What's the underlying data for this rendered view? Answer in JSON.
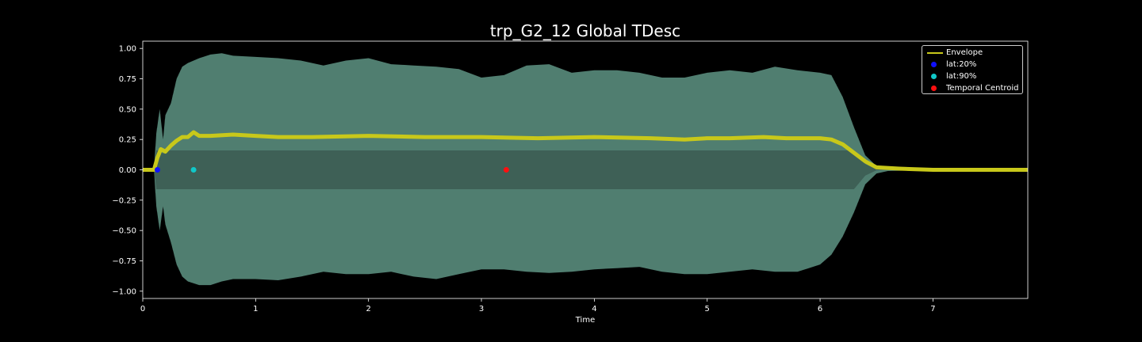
{
  "chart_data": {
    "type": "line",
    "title": "trp_G2_12 Global TDesc",
    "xlabel": "Time",
    "ylabel": "",
    "xlim": [
      0,
      7.84
    ],
    "ylim": [
      -1.06,
      1.06
    ],
    "xticks": [
      0,
      1,
      2,
      3,
      4,
      5,
      6,
      7
    ],
    "yticks": [
      -1.0,
      -0.75,
      -0.5,
      -0.25,
      0.0,
      0.25,
      0.5,
      0.75,
      1.0
    ],
    "ytick_labels": [
      "−1.00",
      "−0.75",
      "−0.50",
      "−0.25",
      "0.00",
      "0.25",
      "0.50",
      "0.75",
      "1.00"
    ],
    "grid": false,
    "legend_position": "top-right",
    "colors": {
      "background": "#000000",
      "waveform": "#5a8f80",
      "waveform_inner": "#3b5a52",
      "envelope": "#c8c81a",
      "lat20": "#1010ff",
      "lat90": "#10c8c8",
      "centroid": "#ff1010"
    },
    "waveform_peak": {
      "x": [
        0.0,
        0.1,
        0.12,
        0.15,
        0.18,
        0.2,
        0.25,
        0.3,
        0.35,
        0.4,
        0.5,
        0.6,
        0.7,
        0.8,
        1.0,
        1.2,
        1.4,
        1.6,
        1.8,
        2.0,
        2.2,
        2.4,
        2.6,
        2.8,
        3.0,
        3.2,
        3.4,
        3.6,
        3.8,
        4.0,
        4.2,
        4.4,
        4.6,
        4.8,
        5.0,
        5.2,
        5.4,
        5.6,
        5.8,
        6.0,
        6.1,
        6.2,
        6.3,
        6.4,
        6.5,
        6.6,
        7.0,
        7.84
      ],
      "upper": [
        0.0,
        0.01,
        0.3,
        0.5,
        0.25,
        0.45,
        0.55,
        0.75,
        0.85,
        0.88,
        0.92,
        0.95,
        0.96,
        0.94,
        0.93,
        0.92,
        0.9,
        0.86,
        0.9,
        0.92,
        0.87,
        0.86,
        0.85,
        0.83,
        0.76,
        0.78,
        0.86,
        0.87,
        0.8,
        0.82,
        0.82,
        0.8,
        0.76,
        0.76,
        0.8,
        0.82,
        0.8,
        0.85,
        0.82,
        0.8,
        0.78,
        0.6,
        0.35,
        0.12,
        0.03,
        0.01,
        0.0,
        0.0
      ],
      "lower": [
        0.0,
        -0.01,
        -0.3,
        -0.5,
        -0.3,
        -0.45,
        -0.6,
        -0.78,
        -0.88,
        -0.92,
        -0.95,
        -0.95,
        -0.92,
        -0.9,
        -0.9,
        -0.91,
        -0.88,
        -0.84,
        -0.86,
        -0.86,
        -0.84,
        -0.88,
        -0.9,
        -0.86,
        -0.82,
        -0.82,
        -0.84,
        -0.85,
        -0.84,
        -0.82,
        -0.81,
        -0.8,
        -0.84,
        -0.86,
        -0.86,
        -0.84,
        -0.82,
        -0.84,
        -0.84,
        -0.78,
        -0.7,
        -0.55,
        -0.35,
        -0.12,
        -0.03,
        -0.01,
        0.0,
        0.0
      ]
    },
    "series": [
      {
        "name": "Envelope",
        "x": [
          0.0,
          0.1,
          0.13,
          0.16,
          0.2,
          0.25,
          0.3,
          0.35,
          0.4,
          0.45,
          0.5,
          0.6,
          0.8,
          1.0,
          1.2,
          1.5,
          2.0,
          2.5,
          3.0,
          3.5,
          4.0,
          4.5,
          4.8,
          5.0,
          5.2,
          5.5,
          5.7,
          6.0,
          6.1,
          6.2,
          6.3,
          6.4,
          6.5,
          6.7,
          7.0,
          7.84
        ],
        "y": [
          0.0,
          0.0,
          0.1,
          0.17,
          0.15,
          0.2,
          0.24,
          0.27,
          0.27,
          0.31,
          0.28,
          0.28,
          0.29,
          0.28,
          0.27,
          0.27,
          0.28,
          0.27,
          0.27,
          0.26,
          0.27,
          0.26,
          0.25,
          0.26,
          0.26,
          0.27,
          0.26,
          0.26,
          0.25,
          0.21,
          0.14,
          0.07,
          0.02,
          0.01,
          0.0,
          0.0
        ]
      },
      {
        "name": "lat:20%",
        "x": [
          0.13
        ],
        "y": [
          0.0
        ]
      },
      {
        "name": "lat:90%",
        "x": [
          0.45
        ],
        "y": [
          0.0
        ]
      },
      {
        "name": "Temporal Centroid",
        "x": [
          3.22
        ],
        "y": [
          0.0
        ]
      }
    ]
  }
}
